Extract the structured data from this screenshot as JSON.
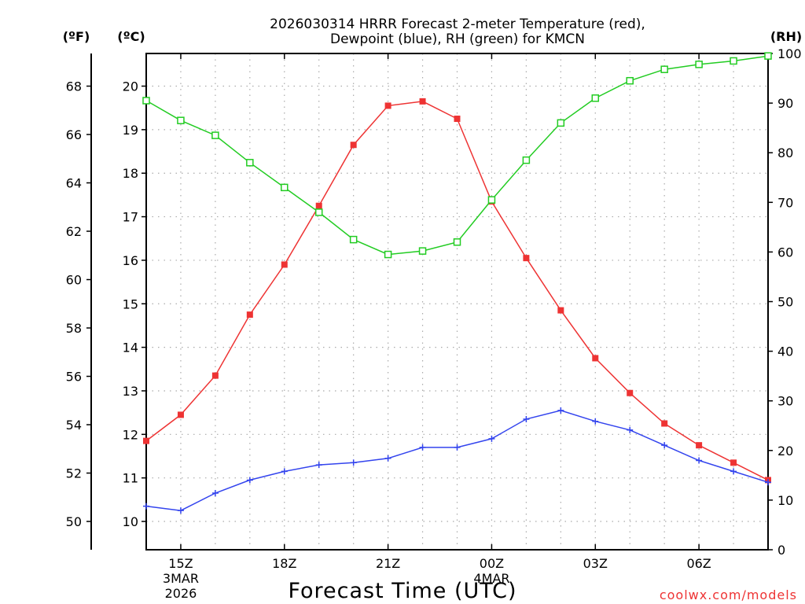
{
  "chart_data": {
    "type": "line",
    "title_line1": "2026030314 HRRR Forecast 2-meter Temperature (red),",
    "title_line2": "Dewpoint (blue), RH (green) for KMCN",
    "xlabel": "Forecast Time (UTC)",
    "credit": "coolwx.com/models",
    "units": {
      "fahrenheit": "(ºF)",
      "celsius": "(ºC)",
      "rh": "(RH)"
    },
    "x_hours": [
      0,
      1,
      2,
      3,
      4,
      5,
      6,
      7,
      8,
      9,
      10,
      11,
      12,
      13,
      14,
      15,
      16,
      17,
      18
    ],
    "x_range": [
      0,
      18
    ],
    "x_ticks": [
      {
        "hour": 1,
        "label": "15Z"
      },
      {
        "hour": 4,
        "label": "18Z"
      },
      {
        "hour": 7,
        "label": "21Z"
      },
      {
        "hour": 10,
        "label": "00Z"
      },
      {
        "hour": 13,
        "label": "03Z"
      },
      {
        "hour": 16,
        "label": "06Z"
      }
    ],
    "x_sublabels": [
      {
        "hour": 1,
        "line1": "3MAR",
        "line2": "2026"
      },
      {
        "hour": 10,
        "line1": "4MAR",
        "line2": ""
      }
    ],
    "celsius_axis": {
      "range": [
        9.35,
        20.75
      ],
      "ticks": [
        10,
        11,
        12,
        13,
        14,
        15,
        16,
        17,
        18,
        19,
        20
      ]
    },
    "fahrenheit_axis": {
      "ticks": [
        50,
        52,
        54,
        56,
        58,
        60,
        62,
        64,
        66,
        68
      ]
    },
    "rh_axis": {
      "range": [
        0,
        100
      ],
      "ticks": [
        0,
        10,
        20,
        30,
        40,
        50,
        60,
        70,
        80,
        90,
        100
      ]
    },
    "series": [
      {
        "name": "Temperature",
        "axis": "celsius",
        "color": "#ee3333",
        "marker": "filled-square",
        "values": [
          11.85,
          12.45,
          13.35,
          14.75,
          15.9,
          17.25,
          18.65,
          19.55,
          19.65,
          19.25,
          17.35,
          16.05,
          14.85,
          13.75,
          12.95,
          12.25,
          11.75,
          11.35,
          10.95
        ]
      },
      {
        "name": "Dewpoint",
        "axis": "celsius",
        "color": "#3344ee",
        "marker": "plus",
        "values": [
          10.35,
          10.25,
          10.65,
          10.95,
          11.15,
          11.3,
          11.35,
          11.45,
          11.7,
          11.7,
          11.9,
          12.35,
          12.55,
          12.3,
          12.1,
          11.75,
          11.4,
          11.15,
          10.9
        ]
      },
      {
        "name": "RH",
        "axis": "rh",
        "color": "#22cc22",
        "marker": "open-square",
        "values": [
          90.5,
          86.5,
          83.5,
          78,
          73,
          68,
          62.5,
          59.5,
          60.2,
          62,
          70.5,
          78.5,
          86,
          91,
          94.5,
          96.8,
          97.8,
          98.5,
          99.5
        ]
      }
    ]
  }
}
